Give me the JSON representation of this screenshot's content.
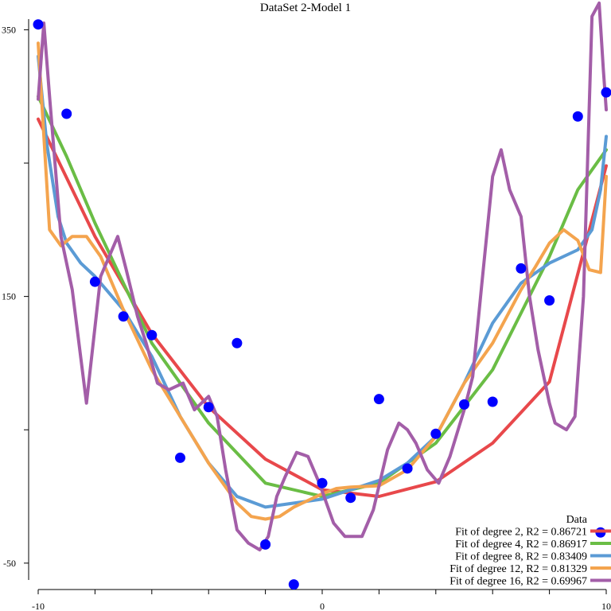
{
  "chart_data": {
    "type": "scatter",
    "title": "DataSet 2-Model 1",
    "xlim": [
      -10,
      10
    ],
    "ylim": [
      -68,
      358
    ],
    "grid": false,
    "legend_placement": "bottom-right",
    "x_ticks": [
      -10,
      -8,
      -6,
      -4,
      -2,
      0,
      2,
      4,
      6,
      8,
      10
    ],
    "x_tick_labels": [
      "-10",
      "0",
      "10"
    ],
    "x_tick_label_values": [
      -10,
      0,
      10
    ],
    "y_ticks": [
      -50,
      50,
      150,
      250,
      350
    ],
    "y_tick_labels": [
      "-50",
      "150",
      "350"
    ],
    "y_tick_label_values": [
      -50,
      150,
      350
    ],
    "data_points": {
      "name": "Data",
      "color": "#0000ff",
      "x": [
        -10,
        -9,
        -8,
        -7,
        -6,
        -5,
        -4,
        -3,
        -2,
        -1,
        0,
        1,
        2,
        3,
        4,
        5,
        6,
        7,
        8,
        9,
        9.8,
        10
      ],
      "y": [
        354,
        287,
        161,
        135,
        121,
        29,
        67,
        115,
        -36,
        -66,
        10,
        -1,
        73,
        21,
        47,
        69,
        71,
        171,
        147,
        285,
        -27,
        303
      ]
    },
    "series": [
      {
        "name": "Fit of degree 2, R2 = 0.86721",
        "color": "#e8484b",
        "x": [
          -10,
          -8,
          -6,
          -4,
          -2,
          0,
          2,
          4,
          6,
          8,
          10
        ],
        "y": [
          283,
          195,
          122,
          67,
          28,
          5,
          0,
          11,
          40,
          86,
          248
        ]
      },
      {
        "name": "Fit of degree 4, R2 = 0.86917",
        "color": "#6abd45",
        "x": [
          -10,
          -9,
          -8,
          -6,
          -4,
          -2,
          0,
          2,
          4,
          6,
          8,
          9,
          10
        ],
        "y": [
          300,
          255,
          205,
          115,
          55,
          10,
          0,
          10,
          40,
          95,
          180,
          230,
          260
        ]
      },
      {
        "name": "Fit of degree 8, R2 = 0.83409",
        "color": "#5b9bd5",
        "x": [
          -10,
          -9.7,
          -9.3,
          -9,
          -8.5,
          -8,
          -7,
          -6,
          -5,
          -4,
          -3,
          -2,
          -1,
          0,
          1,
          2,
          3,
          4,
          5,
          6,
          7,
          8,
          9,
          9.5,
          9.8,
          10
        ],
        "y": [
          330,
          265,
          210,
          190,
          175,
          165,
          140,
          105,
          60,
          25,
          0,
          -8,
          -5,
          -2,
          5,
          12,
          25,
          45,
          85,
          130,
          160,
          175,
          185,
          200,
          230,
          270
        ]
      },
      {
        "name": "Fit of degree 12, R2 = 0.81329",
        "color": "#f4a44e",
        "x": [
          -10,
          -9.6,
          -9.2,
          -8.8,
          -8.3,
          -7.8,
          -7,
          -6,
          -5,
          -4,
          -3,
          -2.5,
          -2,
          -1.5,
          -1,
          0,
          0.5,
          1,
          2,
          3,
          4,
          5,
          6,
          7,
          7.5,
          8,
          8.5,
          9,
          9.4,
          9.8,
          10
        ],
        "y": [
          340,
          200,
          188,
          195,
          195,
          180,
          140,
          95,
          60,
          25,
          -5,
          -15,
          -17,
          -15,
          -8,
          2,
          6,
          7,
          8,
          20,
          45,
          85,
          115,
          155,
          172,
          190,
          200,
          192,
          170,
          168,
          240
        ]
      },
      {
        "name": "Fit of degree 16, R2 = 0.69967",
        "color": "#a35ea8",
        "x": [
          -10,
          -9.8,
          -9.6,
          -9.2,
          -8.8,
          -8.3,
          -7.8,
          -7.2,
          -6.9,
          -6.5,
          -6.2,
          -5.8,
          -5.4,
          -4.9,
          -4.5,
          -4.0,
          -3.7,
          -3.4,
          -3.0,
          -2.6,
          -2.2,
          -1.9,
          -1.6,
          -1.3,
          -0.9,
          -0.5,
          -0.1,
          0.4,
          0.8,
          1.4,
          1.8,
          2.3,
          2.7,
          3.0,
          3.3,
          3.7,
          4.1,
          4.5,
          5.0,
          5.3,
          5.6,
          6.0,
          6.3,
          6.6,
          7.0,
          7.3,
          7.6,
          8.0,
          8.2,
          8.6,
          8.9,
          9.2,
          9.5,
          9.75,
          9.9,
          10
        ],
        "y": [
          298,
          355,
          300,
          195,
          155,
          70,
          165,
          195,
          170,
          135,
          115,
          85,
          80,
          85,
          65,
          75,
          60,
          20,
          -25,
          -35,
          -40,
          -30,
          0,
          15,
          33,
          30,
          10,
          -20,
          -30,
          -30,
          -10,
          35,
          55,
          50,
          40,
          20,
          10,
          30,
          65,
          90,
          155,
          240,
          260,
          230,
          210,
          150,
          110,
          70,
          55,
          50,
          60,
          150,
          360,
          370,
          320,
          290
        ]
      }
    ]
  }
}
